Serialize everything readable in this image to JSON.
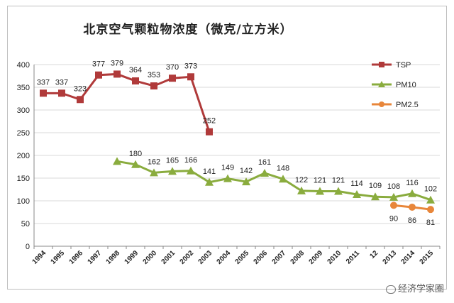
{
  "title": "北京空气颗粒物浓度（微克/立方米）",
  "watermark": "经济学家圈",
  "chart_data": {
    "type": "line",
    "title": "北京空气颗粒物浓度（微克/立方米）",
    "categories": [
      "1994",
      "1995",
      "1996",
      "1997",
      "1998",
      "1999",
      "2000",
      "2001",
      "2002",
      "2003",
      "2004",
      "2005",
      "2006",
      "2007",
      "2008",
      "2009",
      "2010",
      "2011",
      "12",
      "2013",
      "2014",
      "2015"
    ],
    "ylim": [
      0,
      400
    ],
    "yticks": [
      0,
      50,
      100,
      150,
      200,
      250,
      300,
      350,
      400
    ],
    "grid": true,
    "legend_position": "top-right",
    "series": [
      {
        "name": "TSP",
        "color": "#b03a3a",
        "marker": "square",
        "values": [
          337,
          337,
          323,
          377,
          379,
          364,
          353,
          370,
          373,
          252,
          null,
          null,
          null,
          null,
          null,
          null,
          null,
          null,
          null,
          null,
          null,
          null
        ],
        "labels": [
          "337",
          "337",
          "323",
          "377",
          "379",
          "364",
          "353",
          "370",
          "373",
          "252",
          null,
          null,
          null,
          null,
          null,
          null,
          null,
          null,
          null,
          null,
          null,
          null
        ]
      },
      {
        "name": "PM10",
        "color": "#8aac3e",
        "marker": "triangle",
        "values": [
          null,
          null,
          null,
          null,
          187,
          180,
          162,
          165,
          166,
          141,
          149,
          142,
          161,
          148,
          122,
          121,
          121,
          114,
          109,
          108,
          116,
          102
        ],
        "labels": [
          null,
          null,
          null,
          null,
          null,
          "180",
          "162",
          "165",
          "166",
          "141",
          "149",
          "142",
          "161",
          "148",
          "122",
          "121",
          "121",
          "114",
          "109",
          "108",
          "116",
          "102"
        ]
      },
      {
        "name": "PM2.5",
        "color": "#e8863a",
        "marker": "circle",
        "values": [
          null,
          null,
          null,
          null,
          null,
          null,
          null,
          null,
          null,
          null,
          null,
          null,
          null,
          null,
          null,
          null,
          null,
          null,
          null,
          90,
          86,
          81
        ],
        "labels": [
          null,
          null,
          null,
          null,
          null,
          null,
          null,
          null,
          null,
          null,
          null,
          null,
          null,
          null,
          null,
          null,
          null,
          null,
          null,
          "90",
          "86",
          "81"
        ]
      }
    ]
  }
}
